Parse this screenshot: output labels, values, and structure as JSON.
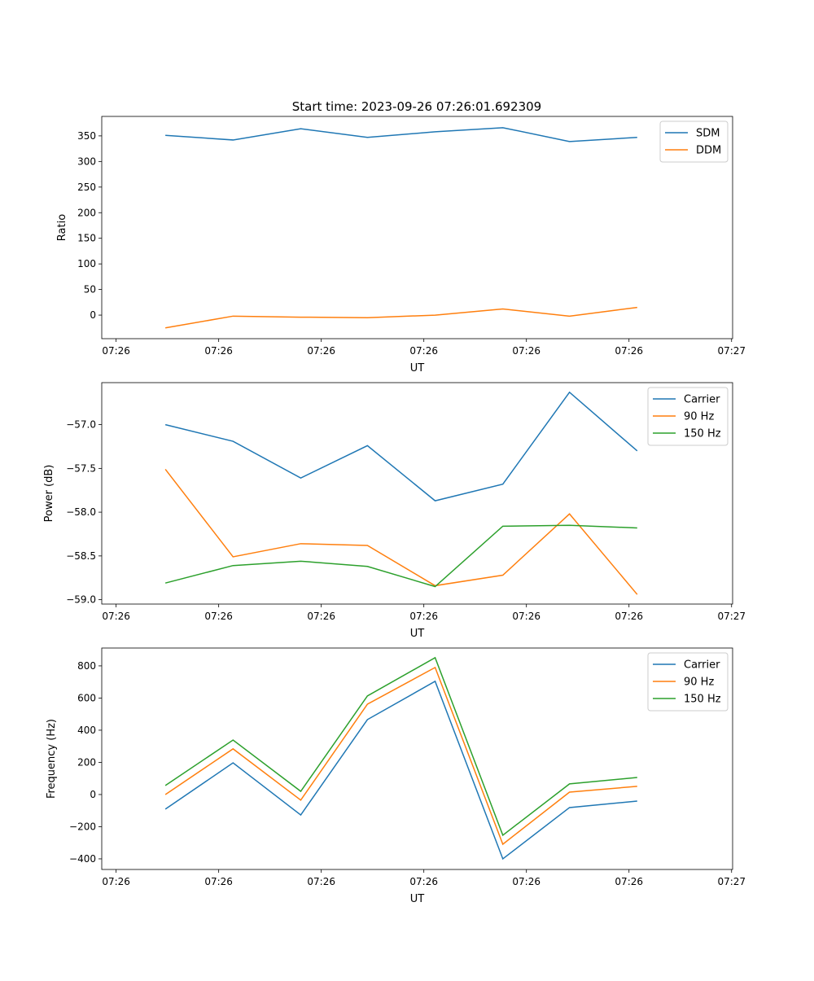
{
  "title": "Start time: 2023-09-26 07:26:01.692309",
  "colors": {
    "c0": "#1f77b4",
    "c1": "#ff7f0e",
    "c2": "#2ca02c"
  },
  "chart_data": [
    {
      "type": "line",
      "xlabel": "UT",
      "ylabel": "Ratio",
      "x_seconds": [
        4.8,
        11.4,
        18.0,
        24.5,
        31.1,
        37.7,
        44.2,
        50.8
      ],
      "xlim": [
        -1.4,
        60.1
      ],
      "x_ticks": [
        0,
        10,
        20,
        30,
        40,
        50,
        60
      ],
      "x_tick_labels": [
        "07:26",
        "07:26",
        "07:26",
        "07:26",
        "07:26",
        "07:26",
        "07:27"
      ],
      "ylim": [
        -46,
        388
      ],
      "y_ticks": [
        0,
        50,
        100,
        150,
        200,
        250,
        300,
        350
      ],
      "y_tick_labels": [
        "0",
        "50",
        "100",
        "150",
        "200",
        "250",
        "300",
        "350"
      ],
      "legend": "top-right",
      "series": [
        {
          "name": "SDM",
          "values": [
            351,
            342,
            364,
            347,
            358,
            366,
            339,
            347
          ]
        },
        {
          "name": "DDM",
          "values": [
            -25,
            -2,
            -4,
            -5,
            0,
            12,
            -2,
            15
          ]
        }
      ]
    },
    {
      "type": "line",
      "xlabel": "UT",
      "ylabel": "Power (dB)",
      "x_seconds": [
        4.8,
        11.4,
        18.0,
        24.5,
        31.1,
        37.7,
        44.2,
        50.8
      ],
      "xlim": [
        -1.4,
        60.1
      ],
      "x_ticks": [
        0,
        10,
        20,
        30,
        40,
        50,
        60
      ],
      "x_tick_labels": [
        "07:26",
        "07:26",
        "07:26",
        "07:26",
        "07:26",
        "07:26",
        "07:27"
      ],
      "ylim": [
        -59.05,
        -56.52
      ],
      "y_ticks": [
        -59.0,
        -58.5,
        -58.0,
        -57.5,
        -57.0
      ],
      "y_tick_labels": [
        "−59.0",
        "−58.5",
        "−58.0",
        "−57.5",
        "−57.0"
      ],
      "legend": "top-right",
      "series": [
        {
          "name": "Carrier",
          "values": [
            -57.0,
            -57.19,
            -57.61,
            -57.24,
            -57.87,
            -57.68,
            -56.63,
            -57.3
          ]
        },
        {
          "name": "90 Hz",
          "values": [
            -57.51,
            -58.51,
            -58.36,
            -58.38,
            -58.84,
            -58.72,
            -58.02,
            -58.94
          ]
        },
        {
          "name": "150 Hz",
          "values": [
            -58.81,
            -58.61,
            -58.56,
            -58.62,
            -58.85,
            -58.16,
            -58.15,
            -58.18
          ]
        }
      ]
    },
    {
      "type": "line",
      "xlabel": "UT",
      "ylabel": "Frequency (Hz)",
      "x_seconds": [
        4.8,
        11.4,
        18.0,
        24.5,
        31.1,
        37.7,
        44.2,
        50.8
      ],
      "xlim": [
        -1.4,
        60.1
      ],
      "x_ticks": [
        0,
        10,
        20,
        30,
        40,
        50,
        60
      ],
      "x_tick_labels": [
        "07:26",
        "07:26",
        "07:26",
        "07:26",
        "07:26",
        "07:26",
        "07:27"
      ],
      "ylim": [
        -466,
        911
      ],
      "y_ticks": [
        -400,
        -200,
        0,
        200,
        400,
        600,
        800
      ],
      "y_tick_labels": [
        "−400",
        "−200",
        "0",
        "200",
        "400",
        "600",
        "800"
      ],
      "legend": "top-right",
      "series": [
        {
          "name": "Carrier",
          "values": [
            -91,
            197,
            -127,
            466,
            704,
            -400,
            -81,
            -41
          ]
        },
        {
          "name": "90 Hz",
          "values": [
            0,
            284,
            -35,
            562,
            790,
            -309,
            15,
            51
          ]
        },
        {
          "name": "150 Hz",
          "values": [
            56,
            339,
            20,
            613,
            851,
            -253,
            66,
            106
          ]
        }
      ]
    }
  ]
}
